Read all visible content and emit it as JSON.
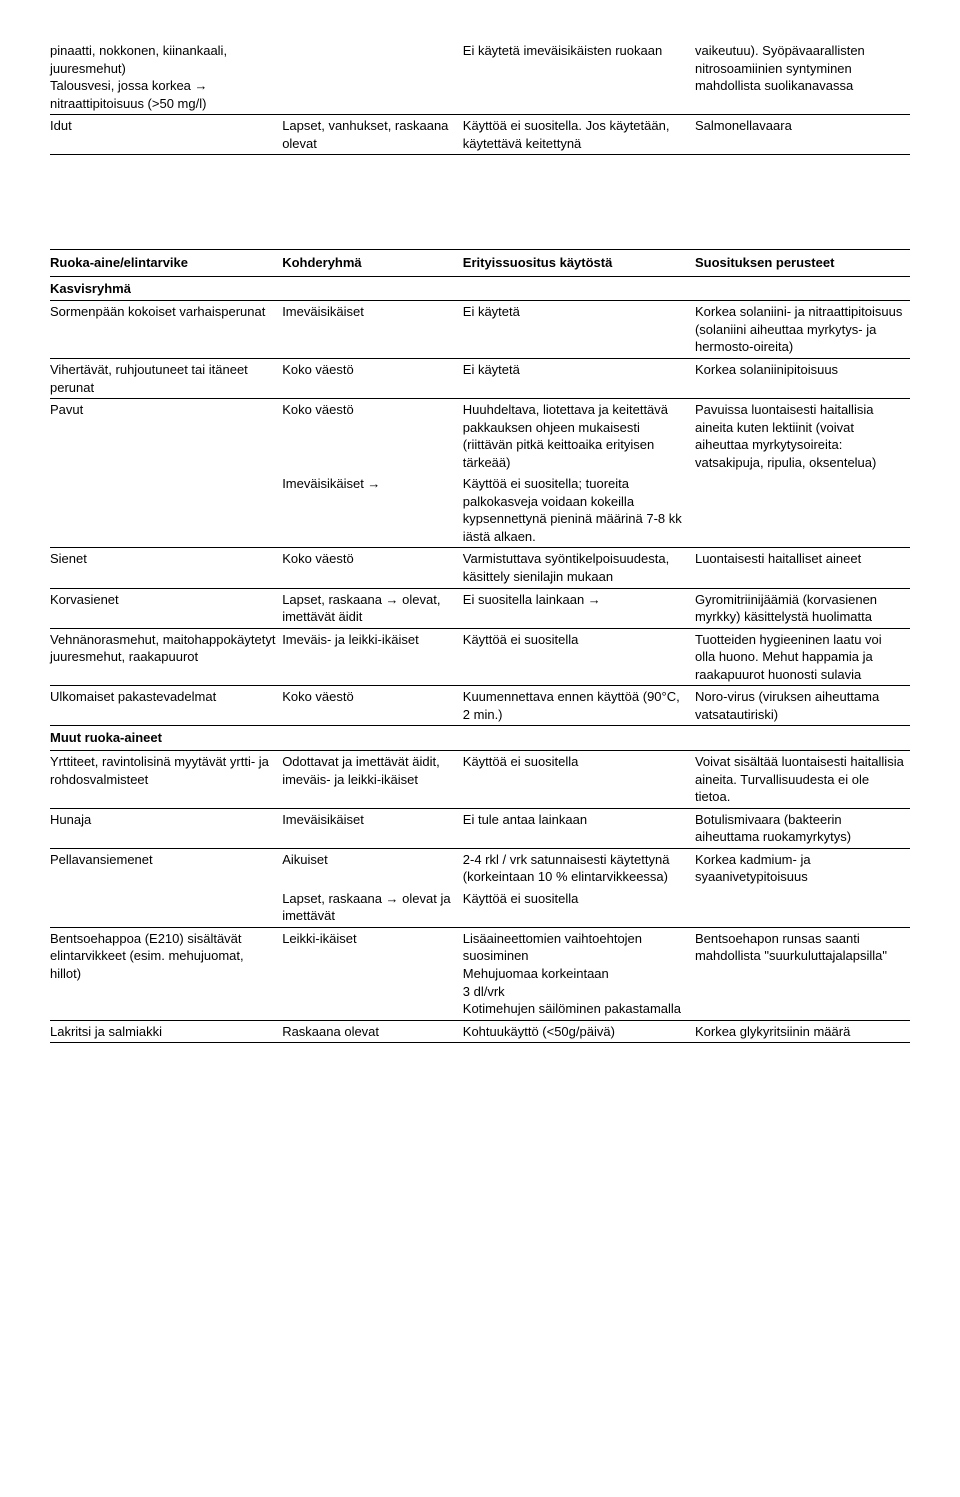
{
  "topTable": {
    "rows": [
      {
        "c1": "pinaatti, nokkonen, kiinankaali, juuresmehut)\nTalousvesi, jossa korkea →\nnitraattipitoisuus (>50 mg/l)",
        "c2": "",
        "c3": "Ei käytetä imeväisikäisten ruokaan",
        "c4": "vaikeutuu). Syöpävaarallisten nitrosoamiinien syntyminen mahdollista suolikanavassa",
        "rule": true
      },
      {
        "c1": "Idut",
        "c2": "Lapset, vanhukset, raskaana olevat",
        "c3": "Käyttöä ei suositella. Jos käytetään, käytettävä keitettynä",
        "c4": "Salmonellavaara",
        "rule": true
      }
    ]
  },
  "headerRow": {
    "c1": "Ruoka-aine/elintarvike",
    "c2": "Kohderyhmä",
    "c3": "Erityissuositus käytöstä",
    "c4": "Suosituksen perusteet"
  },
  "sections": [
    {
      "title": "Kasvisryhmä",
      "rows": [
        {
          "c1": "Sormenpään kokoiset varhaisperunat",
          "c2": "Imeväisikäiset",
          "c3": "Ei käytetä",
          "c4": "Korkea solaniini- ja nitraattipitoisuus (solaniini aiheuttaa myrkytys- ja hermosto-oireita)",
          "rule": true
        },
        {
          "c1": "Vihertävät, ruhjoutuneet tai itäneet perunat",
          "c2": "Koko väestö",
          "c3": "Ei käytetä",
          "c4": "Korkea solaniinipitoisuus",
          "rule": true
        },
        {
          "c1": "Pavut",
          "c2": "Koko väestö",
          "c3": "Huuhdeltava, liotettava ja keitettävä pakkauksen ohjeen mukaisesti (riittävän pitkä keittoaika erityisen tärkeää)",
          "c4": "Pavuissa luontaisesti haitallisia aineita kuten lektiinit (voivat aiheuttaa myrkytysoireita: vatsakipuja, ripulia, oksentelua)",
          "rule": false
        },
        {
          "c1": "",
          "c2": "Imeväisikäiset →",
          "c3": "Käyttöä ei suositella; tuoreita palkokasveja voidaan kokeilla kypsennettynä pieninä määrinä 7-8 kk iästä alkaen.",
          "c4": "",
          "rule": true
        },
        {
          "c1": "Sienet",
          "c2": "Koko väestö",
          "c3": "Varmistuttava syöntikelpoisuudesta, käsittely sienilajin mukaan",
          "c4": "Luontaisesti haitalliset aineet",
          "rule": true
        },
        {
          "c1": "Korvasienet",
          "c2": "Lapset, raskaana → olevat, imettävät äidit",
          "c3": "Ei suositella lainkaan →",
          "c4": "Gyromitriinijäämiä (korvasienen myrkky) käsittelystä huolimatta",
          "rule": true
        },
        {
          "c1": "Vehnänorasmehut, maitohappokäytetyt juuresmehut, raakapuurot",
          "c2": "Imeväis- ja leikki-ikäiset",
          "c3": "Käyttöä ei suositella",
          "c4": "Tuotteiden hygieeninen laatu voi olla huono. Mehut happamia ja raakapuurot huonosti sulavia",
          "rule": true
        },
        {
          "c1": "Ulkomaiset pakastevadelmat",
          "c2": "Koko väestö",
          "c3": "Kuumennettava ennen käyttöä (90°C, 2 min.)",
          "c4": "Noro-virus (viruksen aiheuttama vatsatautiriski)",
          "rule": true
        }
      ]
    },
    {
      "title": "Muut ruoka-aineet",
      "rows": [
        {
          "c1": "Yrttiteet, ravintolisinä myytävät yrtti- ja rohdosvalmisteet",
          "c2": "Odottavat ja imettävät äidit, imeväis- ja leikki-ikäiset",
          "c3": "Käyttöä ei suositella",
          "c4": "Voivat sisältää luontaisesti haitallisia aineita. Turvallisuudesta ei ole tietoa.",
          "rule": true
        },
        {
          "c1": "Hunaja",
          "c2": "Imeväisikäiset",
          "c3": "Ei tule antaa lainkaan",
          "c4": "Botulismivaara (bakteerin aiheuttama ruokamyrkytys)",
          "rule": true
        },
        {
          "c1": "Pellavansiemenet",
          "c2": "Aikuiset",
          "c3": "2-4 rkl / vrk satunnaisesti käytettynä (korkeintaan 10 % elintarvikkeessa)",
          "c4": "Korkea kadmium- ja syaanivetypitoisuus",
          "rule": false
        },
        {
          "c1": "",
          "c2": "Lapset, raskaana → olevat ja imettävät",
          "c3": "Käyttöä ei suositella",
          "c4": "",
          "rule": true
        },
        {
          "c1": "Bentsoehappoa (E210) sisältävät elintarvikkeet (esim. mehujuomat, hillot)",
          "c2": "Leikki-ikäiset",
          "c3": "Lisäaineettomien vaihtoehtojen suosiminen\nMehujuomaa korkeintaan\n3 dl/vrk\nKotimehujen säilöminen pakastamalla",
          "c4": "Bentsoehapon runsas saanti mahdollista \"suurkuluttajalapsilla\"",
          "rule": true
        },
        {
          "c1": "Lakritsi ja salmiakki",
          "c2": "Raskaana olevat",
          "c3": "Kohtuukäyttö (<50g/päivä)",
          "c4": "Korkea glykyritsiinin määrä",
          "rule": true
        }
      ]
    }
  ]
}
